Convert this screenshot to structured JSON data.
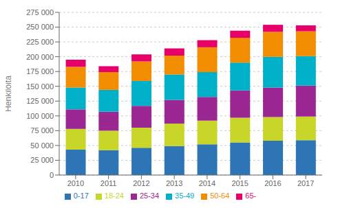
{
  "chart_data": {
    "type": "bar",
    "stacked": true,
    "categories": [
      "2010",
      "2011",
      "2012",
      "2013",
      "2014",
      "2015",
      "2016",
      "2017"
    ],
    "series": [
      {
        "name": "0-17",
        "color": "#2e75b6",
        "values": [
          43000,
          42000,
          46000,
          49000,
          52000,
          55000,
          58000,
          59000
        ]
      },
      {
        "name": "18-24",
        "color": "#c7d629",
        "values": [
          35000,
          33000,
          34000,
          38000,
          40000,
          42000,
          40000,
          40000
        ]
      },
      {
        "name": "25-34",
        "color": "#9b2793",
        "values": [
          33000,
          32000,
          37000,
          40000,
          40000,
          46000,
          50000,
          52000
        ]
      },
      {
        "name": "35-49",
        "color": "#00b0c8",
        "values": [
          37000,
          37000,
          42000,
          43000,
          42000,
          47000,
          52000,
          50000
        ]
      },
      {
        "name": "50-64",
        "color": "#f28c00",
        "values": [
          35000,
          30000,
          33000,
          32000,
          42000,
          42000,
          42000,
          42000
        ]
      },
      {
        "name": "65-",
        "color": "#e8006a",
        "values": [
          12000,
          10000,
          12000,
          12000,
          12000,
          12000,
          12000,
          10000
        ]
      }
    ],
    "ylabel": "Henkilöitä",
    "ylim": [
      0,
      275000
    ],
    "yticks": [
      0,
      {
        "value": 25000,
        "label": "25 000"
      },
      {
        "value": 50000,
        "label": "50 000"
      },
      {
        "value": 75000,
        "label": "75 000"
      },
      {
        "value": 100000,
        "label": "100 000"
      },
      {
        "value": 125000,
        "label": "125 000"
      },
      {
        "value": 150000,
        "label": "150 000"
      },
      {
        "value": 175000,
        "label": "175 000"
      },
      {
        "value": 200000,
        "label": "200 000"
      },
      {
        "value": 225000,
        "label": "225 000"
      },
      {
        "value": 250000,
        "label": "250 000"
      },
      {
        "value": 275000,
        "label": "275 000"
      }
    ],
    "grid": true,
    "legend": "bottom"
  }
}
